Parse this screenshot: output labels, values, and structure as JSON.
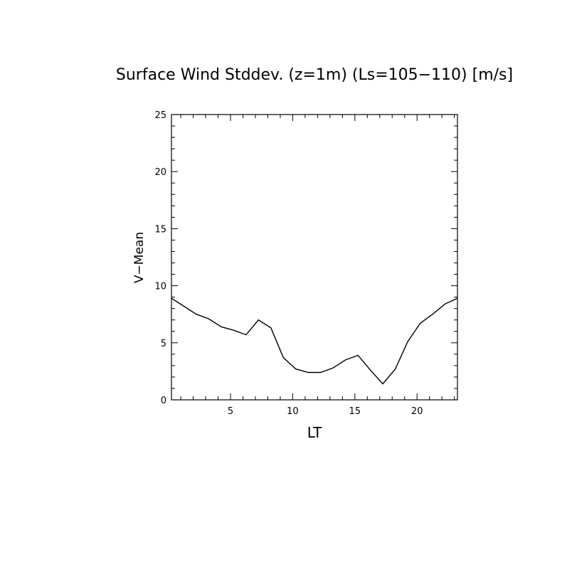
{
  "chart_data": {
    "type": "line",
    "title": "Surface Wind Stddev. (z=1m) (Ls=105−110) [m/s]",
    "xlabel": "LT",
    "ylabel": "V−Mean",
    "xlim": [
      0.25,
      23.25
    ],
    "ylim": [
      0,
      25
    ],
    "x_ticks": [
      5,
      10,
      15,
      20
    ],
    "y_ticks": [
      0,
      5,
      10,
      15,
      20,
      25
    ],
    "grid": false,
    "series": [
      {
        "x": [
          0.25,
          1.25,
          2.25,
          3.25,
          4.25,
          5.25,
          6.25,
          7.25,
          8.25,
          9.25,
          10.25,
          11.25,
          12.25,
          13.25,
          14.25,
          15.25,
          16.25,
          17.25,
          18.25,
          19.25,
          20.25,
          21.25,
          22.25,
          23.25
        ],
        "values": [
          8.9,
          8.2,
          7.5,
          7.1,
          6.4,
          6.1,
          5.7,
          7.0,
          6.3,
          3.7,
          2.7,
          2.4,
          2.4,
          2.8,
          3.5,
          3.9,
          2.6,
          1.4,
          2.7,
          5.1,
          6.7,
          7.5,
          8.4,
          8.9
        ]
      }
    ]
  }
}
